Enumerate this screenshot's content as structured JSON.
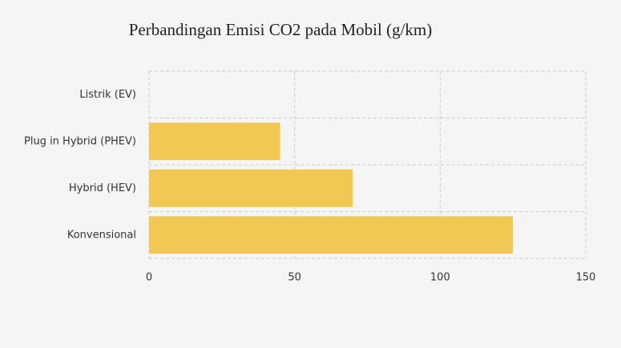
{
  "chart_data": {
    "type": "barh",
    "title": "Perbandingan Emisi CO2 pada Mobil (g/km)",
    "categories": [
      "Listrik (EV)",
      "Plug in Hybrid (PHEV)",
      "Hybrid (HEV)",
      "Konvensional"
    ],
    "values": [
      0,
      45,
      70,
      125
    ],
    "color": "#f0c341",
    "xlim": [
      0,
      150
    ],
    "xticks": [
      0,
      50,
      100,
      150
    ],
    "grid": true
  }
}
